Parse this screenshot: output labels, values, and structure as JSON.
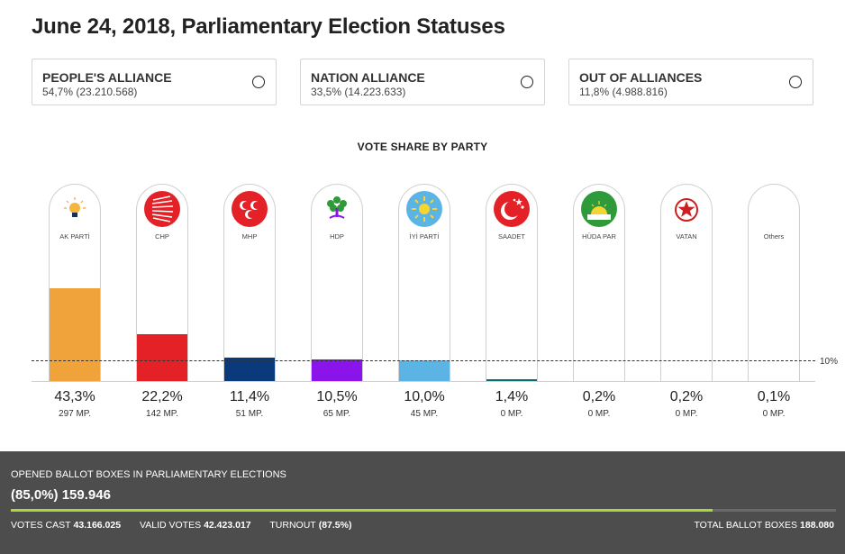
{
  "page": {
    "title": "June 24, 2018, Parliamentary Election Statuses"
  },
  "alliances": [
    {
      "name": "PEOPLE'S ALLIANCE",
      "value": "54,7% (23.210.568)"
    },
    {
      "name": "NATION ALLIANCE",
      "value": "33,5% (14.223.633)"
    },
    {
      "name": "OUT OF ALLIANCES",
      "value": "11,8% (4.988.816)"
    }
  ],
  "chart_data": {
    "type": "bar",
    "title": "VOTE SHARE BY PARTY",
    "threshold_label": "10%",
    "threshold": 10,
    "ylim": [
      0,
      48
    ],
    "categories": [
      "AK PARTİ",
      "CHP",
      "MHP",
      "HDP",
      "İYİ PARTİ",
      "SAADET",
      "HÜDA PAR",
      "VATAN",
      "Others"
    ],
    "values": [
      43.3,
      22.2,
      11.4,
      10.5,
      10.0,
      1.4,
      0.2,
      0.2,
      0.1
    ],
    "value_labels": [
      "43,3%",
      "22,2%",
      "11,4%",
      "10,5%",
      "10,0%",
      "1,4%",
      "0,2%",
      "0,2%",
      "0,1%"
    ],
    "mp_labels": [
      "297 MP.",
      "142 MP.",
      "51 MP.",
      "65 MP.",
      "45 MP.",
      "0 MP.",
      "0 MP.",
      "0 MP.",
      "0 MP."
    ],
    "colors": [
      "#f0a33a",
      "#e42127",
      "#0a3a7c",
      "#8b14ea",
      "#5bb4e3",
      "#0a6e6e",
      "#3c9a3c",
      "#cc1f1f",
      "#999999"
    ],
    "logos": [
      "bulb-icon",
      "chp-arrows-icon",
      "mhp-crescents-icon",
      "hdp-tree-icon",
      "iyi-sun-icon",
      "saadet-crescent-star-icon",
      "hudapar-sunrise-icon",
      "vatan-star-icon",
      ""
    ]
  },
  "footer": {
    "label": "OPENED BALLOT BOXES IN PARLIAMENTARY ELECTIONS",
    "count": "(85,0%) 159.946",
    "progress": 0.85,
    "votes_cast_label": "VOTES CAST",
    "votes_cast": "43.166.025",
    "valid_votes_label": "VALID VOTES",
    "valid_votes": "42.423.017",
    "turnout_label": "TURNOUT",
    "turnout": "(87.5%)",
    "total_label": "TOTAL BALLOT BOXES",
    "total": "188.080"
  }
}
